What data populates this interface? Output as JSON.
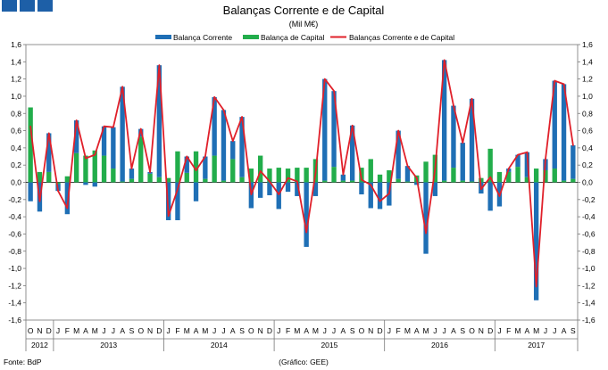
{
  "header_squares": 3,
  "chart_data": {
    "type": "bar",
    "title": "Balanças Corrente e de Capital",
    "subtitle": "(Mil M€)",
    "ylim": [
      -1.6,
      1.6
    ],
    "yticks": [
      "1,6",
      "1,4",
      "1,2",
      "1,0",
      "0,8",
      "0,6",
      "0,4",
      "0,2",
      "0,0",
      "-0,2",
      "-0,4",
      "-0,6",
      "-0,8",
      "-1,0",
      "-1,2",
      "-1,4",
      "-1,6"
    ],
    "grid": false,
    "legend_position": "top",
    "colors": {
      "current": "#1f6fb5",
      "capital": "#22ad4b",
      "total": "#e0202a",
      "header": "#1d5fa7"
    },
    "series": [
      {
        "name": "Balança Corrente",
        "values": [
          -0.22,
          -0.34,
          0.45,
          -0.08,
          -0.37,
          0.38,
          -0.03,
          -0.05,
          0.34,
          0.48,
          1.1,
          0.12,
          0.09,
          0.02,
          1.3,
          -0.44,
          -0.44,
          0.19,
          -0.22,
          0.26,
          0.68,
          0.82,
          0.21,
          0.7,
          -0.3,
          -0.18,
          -0.15,
          -0.31,
          -0.11,
          -0.16,
          -0.75,
          -0.16,
          1.18,
          0.88,
          0.07,
          0.64,
          -0.14,
          -0.3,
          -0.31,
          -0.27,
          0.56,
          0.18,
          -0.03,
          -0.83,
          -0.16,
          1.4,
          0.72,
          0.44,
          0.96,
          -0.13,
          -0.33,
          -0.28,
          0.04,
          0.14,
          0.29,
          -1.37,
          0.13,
          1.02,
          1.12,
          0.39
        ]
      },
      {
        "name": "Balança de Capital",
        "values": [
          0.87,
          0.12,
          0.12,
          -0.02,
          0.07,
          0.34,
          0.31,
          0.37,
          0.31,
          0.16,
          0.01,
          0.04,
          0.53,
          0.1,
          0.06,
          0.05,
          0.36,
          0.11,
          0.36,
          0.04,
          0.31,
          0.02,
          0.27,
          0.06,
          0.16,
          0.31,
          0.16,
          0.17,
          0.16,
          0.17,
          0.17,
          0.27,
          0.02,
          0.18,
          0.02,
          0.02,
          0.17,
          0.27,
          0.09,
          0.14,
          0.04,
          0.01,
          0.08,
          0.24,
          0.32,
          0.02,
          0.17,
          0.02,
          0.01,
          0.05,
          0.39,
          0.12,
          0.12,
          0.18,
          0.06,
          0.16,
          0.14,
          0.16,
          0.02,
          0.04
        ]
      },
      {
        "name": "Balanças Corrente e de Capital",
        "values": [
          0.65,
          -0.22,
          0.57,
          -0.1,
          -0.3,
          0.72,
          0.28,
          0.32,
          0.65,
          0.64,
          1.11,
          0.16,
          0.62,
          0.12,
          1.36,
          -0.39,
          -0.08,
          0.3,
          0.14,
          0.3,
          0.99,
          0.84,
          0.48,
          0.76,
          -0.14,
          0.13,
          0.01,
          -0.14,
          0.05,
          0.01,
          -0.58,
          0.11,
          1.2,
          1.06,
          0.09,
          0.66,
          0.03,
          -0.03,
          -0.22,
          -0.13,
          0.6,
          0.19,
          0.05,
          -0.59,
          0.16,
          1.42,
          0.89,
          0.46,
          0.97,
          -0.08,
          0.06,
          -0.16,
          0.16,
          0.32,
          0.35,
          -1.21,
          0.27,
          1.18,
          1.14,
          0.43
        ]
      }
    ],
    "categories": [
      "O",
      "N",
      "D",
      "J",
      "F",
      "M",
      "A",
      "M",
      "J",
      "J",
      "A",
      "S",
      "O",
      "N",
      "D",
      "J",
      "F",
      "M",
      "A",
      "M",
      "J",
      "J",
      "A",
      "S",
      "O",
      "N",
      "D",
      "J",
      "F",
      "M",
      "A",
      "M",
      "J",
      "J",
      "A",
      "S",
      "O",
      "N",
      "D",
      "J",
      "F",
      "M",
      "A",
      "M",
      "J",
      "J",
      "A",
      "S",
      "O",
      "N",
      "D",
      "J",
      "F",
      "M",
      "A",
      "M",
      "J",
      "J",
      "A",
      "S"
    ],
    "years": [
      {
        "label": "2012",
        "months": 3
      },
      {
        "label": "2013",
        "months": 12
      },
      {
        "label": "2014",
        "months": 12
      },
      {
        "label": "2015",
        "months": 12
      },
      {
        "label": "2016",
        "months": 12
      },
      {
        "label": "2017",
        "months": 9
      }
    ]
  },
  "footer": {
    "source": "Fonte: BdP",
    "credit": "(Gráfico: GEE)"
  }
}
